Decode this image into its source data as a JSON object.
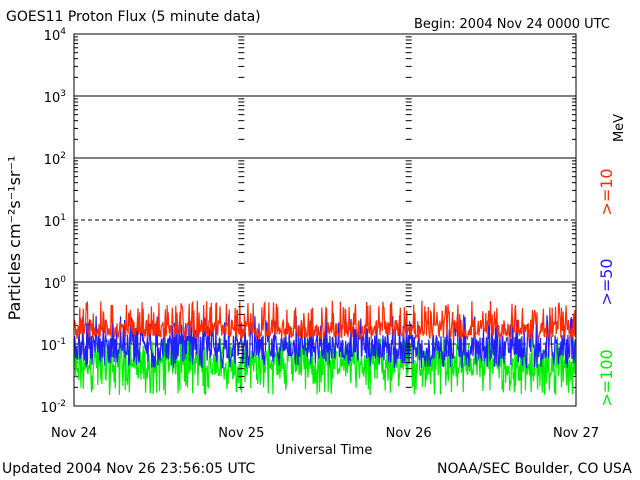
{
  "header": {
    "title": "GOES11 Proton Flux (5 minute data)",
    "begin": "Begin: 2004 Nov 24 0000 UTC"
  },
  "footer": {
    "updated": "Updated 2004 Nov 26 23:56:05 UTC",
    "credit": "NOAA/SEC Boulder, CO USA"
  },
  "chart_data": {
    "type": "line",
    "title": "GOES11 Proton Flux (5 minute data)",
    "xlabel": "Universal Time",
    "ylabel": "Particles cm⁻²s⁻¹sr⁻¹",
    "y_scale": "log",
    "ylim": [
      0.01,
      10000
    ],
    "xlim": [
      0,
      3
    ],
    "x_unit": "days since 2004 Nov 24 00:00 UTC",
    "x_ticks": [
      {
        "value": 0,
        "label": "Nov 24"
      },
      {
        "value": 1,
        "label": "Nov 25"
      },
      {
        "value": 2,
        "label": "Nov 26"
      },
      {
        "value": 3,
        "label": "Nov 27"
      }
    ],
    "y_ticks": [
      {
        "base": "10",
        "exp": "-2",
        "value": 0.01
      },
      {
        "base": "10",
        "exp": "-1",
        "value": 0.1
      },
      {
        "base": "10",
        "exp": "0",
        "value": 1
      },
      {
        "base": "10",
        "exp": "1",
        "value": 10
      },
      {
        "base": "10",
        "exp": "2",
        "value": 100
      },
      {
        "base": "10",
        "exp": "3",
        "value": 1000
      },
      {
        "base": "10",
        "exp": "4",
        "value": 10000
      }
    ],
    "solid_lines": [
      1,
      100,
      1000
    ],
    "dashed_lines": [
      0.1,
      10
    ],
    "legend_unit": "MeV",
    "series": [
      {
        "name": ">=10",
        "color": "#ff2a00",
        "typical": 0.18,
        "low": 0.12,
        "high": 0.5
      },
      {
        "name": ">=50",
        "color": "#2020ff",
        "typical": 0.09,
        "low": 0.04,
        "high": 0.3
      },
      {
        "name": ">=100",
        "color": "#00ee00",
        "typical": 0.05,
        "low": 0.015,
        "high": 0.13
      }
    ]
  }
}
